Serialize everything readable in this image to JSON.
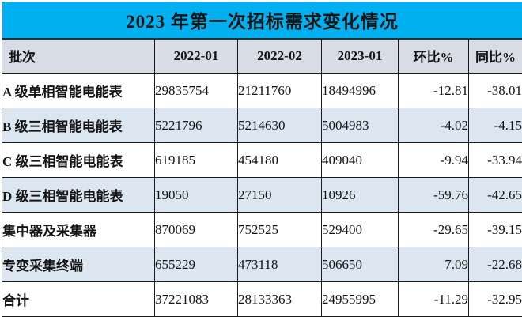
{
  "title": "2023 年第一次招标需求变化情况",
  "colors": {
    "title_bg": "#00b0f0",
    "header_bg": "#d7dce5",
    "stripe_bg": "#dce6f1",
    "border": "#1a1a1a",
    "text": "#141414"
  },
  "table": {
    "columns": [
      "批次",
      "2022-01",
      "2022-02",
      "2023-01",
      "环比%",
      "同比%"
    ],
    "rows": [
      {
        "label": "A 级单相智能电能表",
        "v2201": "29835754",
        "v2202": "21211760",
        "v2301": "18494996",
        "mom": "-12.81",
        "yoy": "-38.01"
      },
      {
        "label": "B 级三相智能电能表",
        "v2201": "5221796",
        "v2202": "5214630",
        "v2301": "5004983",
        "mom": "-4.02",
        "yoy": "-4.15"
      },
      {
        "label": "C 级三相智能电能表",
        "v2201": "619185",
        "v2202": "454180",
        "v2301": "409040",
        "mom": "-9.94",
        "yoy": "-33.94"
      },
      {
        "label": "D 级三相智能电能表",
        "v2201": "19050",
        "v2202": "27150",
        "v2301": "10926",
        "mom": "-59.76",
        "yoy": "-42.65"
      },
      {
        "label": "集中器及采集器",
        "v2201": "870069",
        "v2202": "752525",
        "v2301": "529400",
        "mom": "-29.65",
        "yoy": "-39.15"
      },
      {
        "label": "专变采集终端",
        "v2201": "655229",
        "v2202": "473118",
        "v2301": "506650",
        "mom": "7.09",
        "yoy": "-22.68"
      },
      {
        "label": "合计",
        "v2201": "37221083",
        "v2202": "28133363",
        "v2301": "24955995",
        "mom": "-11.29",
        "yoy": "-32.95"
      }
    ]
  },
  "chart_data": {
    "type": "table",
    "title": "2023 年第一次招标需求变化情况",
    "columns": [
      "批次",
      "2022-01",
      "2022-02",
      "2023-01",
      "环比%",
      "同比%"
    ],
    "rows": [
      [
        "A 级单相智能电能表",
        29835754,
        21211760,
        18494996,
        -12.81,
        -38.01
      ],
      [
        "B 级三相智能电能表",
        5221796,
        5214630,
        5004983,
        -4.02,
        -4.15
      ],
      [
        "C 级三相智能电能表",
        619185,
        454180,
        409040,
        -9.94,
        -33.94
      ],
      [
        "D 级三相智能电能表",
        19050,
        27150,
        10926,
        -59.76,
        -42.65
      ],
      [
        "集中器及采集器",
        870069,
        752525,
        529400,
        -29.65,
        -39.15
      ],
      [
        "专变采集终端",
        655229,
        473118,
        506650,
        7.09,
        -22.68
      ],
      [
        "合计",
        37221083,
        28133363,
        24955995,
        -11.29,
        -32.95
      ]
    ]
  }
}
